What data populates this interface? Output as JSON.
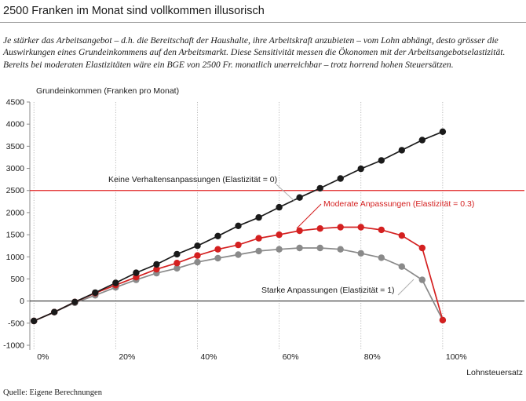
{
  "header": {
    "title": "2500 Franken im Monat sind vollkommen illusorisch",
    "lede": "Je stärker das Arbeitsangebot – d.h. die Bereitschaft der Haushalte, ihre Arbeitskraft anzubieten – vom Lohn abhängt, desto grösser die Auswirkungen eines Grundeinkommens auf den Arbeitsmarkt. Diese Sensitivität messen die Ökonomen mit der Arbeitsangebotselastizität. Bereits bei moderaten Elastizitäten wäre ein BGE von 2500 Fr. monatlich unerreichbar – trotz horrend hohen Steuersätzen."
  },
  "footer": {
    "source": "Quelle: Eigene Berechnungen"
  },
  "chart_data": {
    "type": "line",
    "ylabel": "Grundeinkommen (Franken pro Monat)",
    "xlabel": "Lohnsteuersatz",
    "x_unit": "%",
    "ylim": [
      -1000,
      4500
    ],
    "xlim": [
      -1,
      120
    ],
    "y_ticks": [
      -1000,
      -500,
      0,
      500,
      1000,
      1500,
      2000,
      2500,
      3000,
      3500,
      4000,
      4500
    ],
    "x_ticks": [
      0,
      20,
      40,
      60,
      80,
      100
    ],
    "x_tick_labels": [
      "0%",
      "20%",
      "40%",
      "60%",
      "80%",
      "100%"
    ],
    "grid": "vertical dotted",
    "reference_line": {
      "y": 2500,
      "label": "Keine Verhaltensanpassungen (Elastizität = 0)",
      "color": "#e02020"
    },
    "series": [
      {
        "name": "",
        "color": "#1a1a1a",
        "x": [
          0,
          5,
          10,
          15,
          20,
          25,
          30,
          35,
          40,
          45,
          50,
          55,
          60,
          65,
          70,
          75,
          80,
          85,
          90,
          95,
          100
        ],
        "y": [
          -450,
          -250,
          -20,
          190,
          410,
          640,
          830,
          1060,
          1250,
          1470,
          1700,
          1890,
          2120,
          2340,
          2550,
          2770,
          2990,
          3180,
          3410,
          3640,
          3830
        ]
      },
      {
        "name": "Moderate Anpassungen (Elastizität = 0.3)",
        "color": "#d42020",
        "x": [
          0,
          5,
          10,
          15,
          20,
          25,
          30,
          35,
          40,
          45,
          50,
          55,
          60,
          65,
          70,
          75,
          80,
          85,
          90,
          95,
          100
        ],
        "y": [
          -450,
          -250,
          -20,
          180,
          360,
          540,
          720,
          860,
          1030,
          1170,
          1270,
          1420,
          1500,
          1590,
          1640,
          1670,
          1670,
          1610,
          1480,
          1200,
          -430
        ]
      },
      {
        "name": "Starke Anpassungen (Elastizität = 1)",
        "color": "#8a8a8a",
        "x": [
          0,
          5,
          10,
          15,
          20,
          25,
          30,
          35,
          40,
          45,
          50,
          55,
          60,
          65,
          70,
          75,
          80,
          85,
          90,
          95,
          100
        ],
        "y": [
          -450,
          -250,
          -40,
          130,
          310,
          480,
          630,
          740,
          880,
          970,
          1050,
          1130,
          1170,
          1200,
          1200,
          1170,
          1080,
          980,
          780,
          480,
          -430
        ]
      }
    ]
  }
}
